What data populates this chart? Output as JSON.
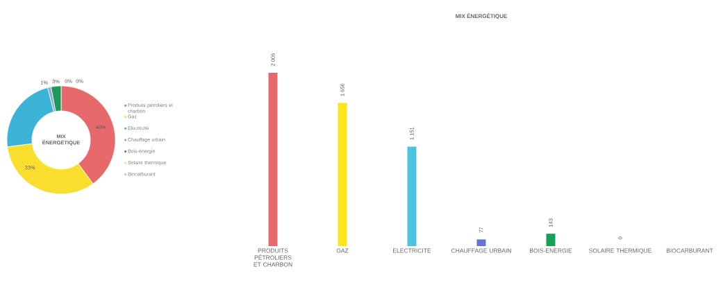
{
  "chart_data": [
    {
      "type": "donut",
      "title": "MIX ÉNERGÉTIQUE",
      "categories": [
        "Produits pétroliers et charbon",
        "Gaz",
        "Electricité",
        "Chauffage urbain",
        "Bois-énergie",
        "Solaire thermique",
        "Biocarburant"
      ],
      "values": [
        40,
        33,
        23,
        1,
        3,
        0,
        0
      ],
      "value_labels": [
        "40%",
        "33%",
        null,
        "1%",
        "3%",
        "0%",
        "0%"
      ],
      "colors": [
        "#e8696b",
        "#f9de2e",
        "#3cb4d8",
        "#8fa8e0",
        "#1d9a5a",
        "#f3e36a",
        "#a9c6e6"
      ],
      "legend": "right"
    },
    {
      "type": "bar",
      "title": "MIX ÉNERGÉTIQUE",
      "categories": [
        "PRODUITS PÉTROLIERS ET CHARBON",
        "GAZ",
        "ELECTRICITE",
        "CHAUFFAGE URBAIN",
        "BOIS-ENERGIE",
        "SOLAIRE THERMIQUE",
        "BIOCARBURANT"
      ],
      "values": [
        2006,
        1656,
        1151,
        77,
        143,
        0,
        null
      ],
      "value_labels": [
        "2 006",
        "1 656",
        "1 151",
        "77",
        "143",
        "0",
        null
      ],
      "colors": [
        "#e8696b",
        "#fce51e",
        "#4ec3e0",
        "#6674d4",
        "#16a05a",
        "#f3e36a",
        "#a9c6e6"
      ]
    }
  ]
}
